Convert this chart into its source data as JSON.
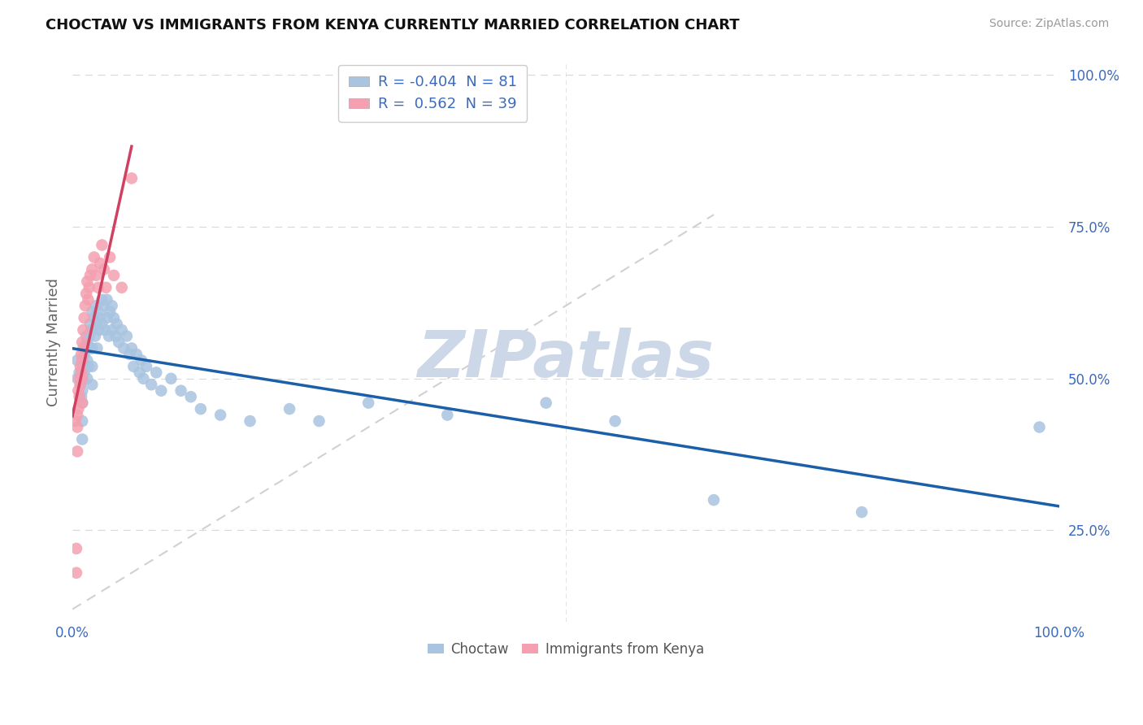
{
  "title": "CHOCTAW VS IMMIGRANTS FROM KENYA CURRENTLY MARRIED CORRELATION CHART",
  "source": "Source: ZipAtlas.com",
  "ylabel": "Currently Married",
  "r_choctaw": -0.404,
  "n_choctaw": 81,
  "r_kenya": 0.562,
  "n_kenya": 39,
  "choctaw_color": "#a8c4e0",
  "kenya_color": "#f4a0b0",
  "trend_choctaw_color": "#1a5fa8",
  "trend_kenya_color": "#d04060",
  "diagonal_color": "#cccccc",
  "background_color": "#ffffff",
  "grid_color": "#d8d8d8",
  "watermark": "ZIPatlas",
  "watermark_color": "#ccd8e8",
  "choctaw_x": [
    0.005,
    0.005,
    0.007,
    0.008,
    0.009,
    0.01,
    0.01,
    0.01,
    0.01,
    0.01,
    0.01,
    0.012,
    0.012,
    0.013,
    0.013,
    0.014,
    0.015,
    0.015,
    0.015,
    0.016,
    0.016,
    0.017,
    0.018,
    0.018,
    0.019,
    0.02,
    0.02,
    0.02,
    0.02,
    0.02,
    0.022,
    0.023,
    0.024,
    0.025,
    0.025,
    0.026,
    0.027,
    0.028,
    0.03,
    0.03,
    0.032,
    0.033,
    0.035,
    0.035,
    0.037,
    0.038,
    0.04,
    0.04,
    0.042,
    0.044,
    0.045,
    0.047,
    0.05,
    0.052,
    0.055,
    0.058,
    0.06,
    0.062,
    0.065,
    0.068,
    0.07,
    0.072,
    0.075,
    0.08,
    0.085,
    0.09,
    0.1,
    0.11,
    0.12,
    0.13,
    0.15,
    0.18,
    0.22,
    0.25,
    0.3,
    0.38,
    0.48,
    0.55,
    0.65,
    0.8,
    0.98
  ],
  "choctaw_y": [
    0.5,
    0.53,
    0.51,
    0.49,
    0.47,
    0.52,
    0.5,
    0.48,
    0.46,
    0.43,
    0.4,
    0.54,
    0.51,
    0.55,
    0.52,
    0.57,
    0.56,
    0.53,
    0.5,
    0.55,
    0.52,
    0.57,
    0.59,
    0.55,
    0.58,
    0.61,
    0.58,
    0.55,
    0.52,
    0.49,
    0.6,
    0.57,
    0.62,
    0.59,
    0.55,
    0.61,
    0.58,
    0.6,
    0.63,
    0.59,
    0.62,
    0.58,
    0.63,
    0.6,
    0.57,
    0.61,
    0.62,
    0.58,
    0.6,
    0.57,
    0.59,
    0.56,
    0.58,
    0.55,
    0.57,
    0.54,
    0.55,
    0.52,
    0.54,
    0.51,
    0.53,
    0.5,
    0.52,
    0.49,
    0.51,
    0.48,
    0.5,
    0.48,
    0.47,
    0.45,
    0.44,
    0.43,
    0.45,
    0.43,
    0.46,
    0.44,
    0.46,
    0.43,
    0.3,
    0.28,
    0.42
  ],
  "kenya_x": [
    0.003,
    0.004,
    0.004,
    0.005,
    0.005,
    0.005,
    0.006,
    0.006,
    0.007,
    0.007,
    0.008,
    0.008,
    0.009,
    0.009,
    0.01,
    0.01,
    0.01,
    0.01,
    0.011,
    0.011,
    0.012,
    0.013,
    0.014,
    0.015,
    0.016,
    0.017,
    0.018,
    0.02,
    0.022,
    0.024,
    0.026,
    0.028,
    0.03,
    0.032,
    0.034,
    0.038,
    0.042,
    0.05,
    0.06
  ],
  "kenya_y": [
    0.43,
    0.22,
    0.18,
    0.44,
    0.42,
    0.38,
    0.48,
    0.45,
    0.5,
    0.47,
    0.52,
    0.49,
    0.54,
    0.51,
    0.56,
    0.53,
    0.5,
    0.46,
    0.58,
    0.55,
    0.6,
    0.62,
    0.64,
    0.66,
    0.63,
    0.65,
    0.67,
    0.68,
    0.7,
    0.67,
    0.65,
    0.69,
    0.72,
    0.68,
    0.65,
    0.7,
    0.67,
    0.65,
    0.83
  ],
  "ylim": [
    0.1,
    1.02
  ],
  "xlim": [
    0.0,
    1.0
  ],
  "xticks": [
    0.0,
    1.0
  ],
  "xticklabels": [
    "0.0%",
    "100.0%"
  ],
  "yticks": [
    0.25,
    0.5,
    0.75,
    1.0
  ],
  "yticklabels": [
    "25.0%",
    "50.0%",
    "75.0%",
    "100.0%"
  ],
  "tick_color": "#3a6abf",
  "axis_label_color": "#666666",
  "title_color": "#111111",
  "source_color": "#999999",
  "legend_edge_color": "#cccccc"
}
